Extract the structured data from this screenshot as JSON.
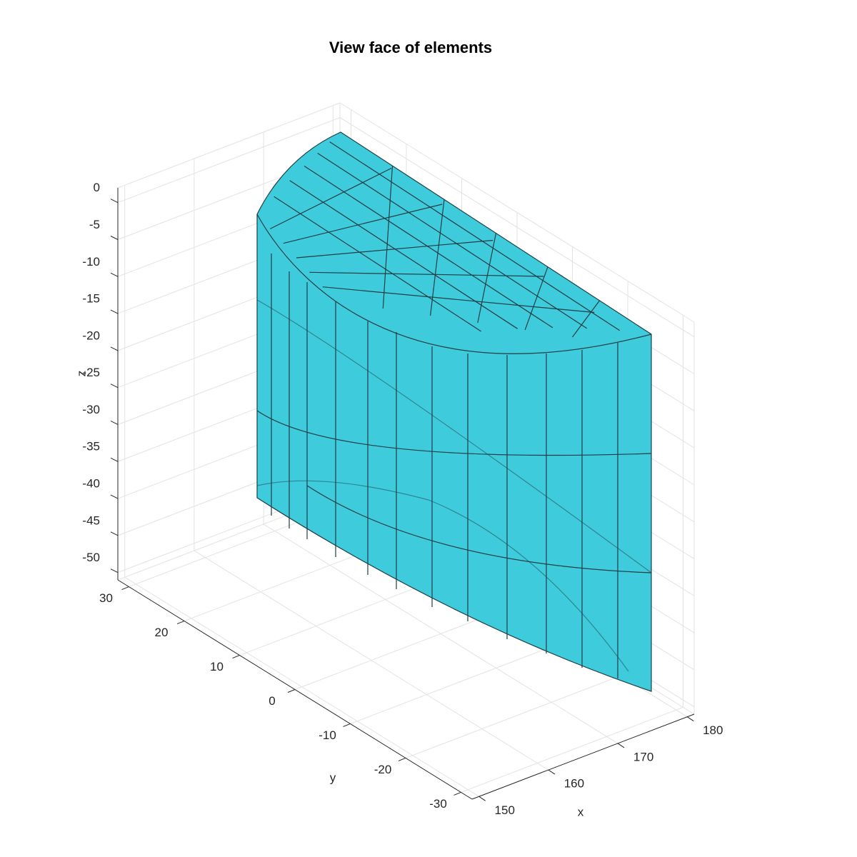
{
  "chart_data": {
    "type": "mesh3d",
    "title": "View face of elements",
    "xlabel": "x",
    "ylabel": "y",
    "zlabel": "z",
    "xlim": [
      149,
      181
    ],
    "ylim": [
      -32,
      32
    ],
    "zlim": [
      -51,
      2
    ],
    "xticks": [
      150,
      160,
      170,
      180
    ],
    "yticks": [
      -30,
      -20,
      -10,
      0,
      10,
      20,
      30
    ],
    "zticks": [
      -50,
      -45,
      -40,
      -35,
      -30,
      -25,
      -20,
      -15,
      -10,
      -5,
      0
    ],
    "grid": true,
    "color": "#3ecbdc"
  }
}
